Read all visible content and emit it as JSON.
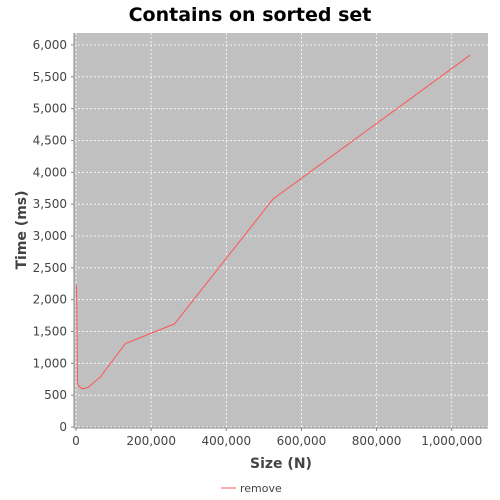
{
  "chart_data": {
    "type": "line",
    "title": "Contains on sorted set",
    "xlabel": "Size (N)",
    "ylabel": "Time (ms)",
    "xlim": [
      0,
      1100000
    ],
    "ylim": [
      0,
      6200
    ],
    "x_ticks": [
      0,
      200000,
      400000,
      600000,
      800000,
      1000000
    ],
    "x_tick_labels": [
      "0",
      "200,000",
      "400,000",
      "600,000",
      "800,000",
      "1,000,000"
    ],
    "y_ticks": [
      0,
      500,
      1000,
      1500,
      2000,
      2500,
      3000,
      3500,
      4000,
      4500,
      5000,
      5500,
      6000
    ],
    "y_tick_labels": [
      "0",
      "500",
      "1,000",
      "1,500",
      "2,000",
      "2,500",
      "3,000",
      "3,500",
      "4,000",
      "4,500",
      "5,000",
      "5,500",
      "6,000"
    ],
    "grid": true,
    "legend_position": "bottom",
    "series": [
      {
        "name": "remove",
        "color": "#ff5555",
        "x": [
          1000,
          2000,
          4000,
          8000,
          16000,
          32000,
          65536,
          131072,
          262144,
          524288,
          1048576
        ],
        "y": [
          2230,
          1900,
          700,
          640,
          600,
          620,
          790,
          1310,
          1620,
          3580,
          5840
        ]
      }
    ],
    "plot_background": "#c0c0c0",
    "grid_color": "#ffffff"
  }
}
